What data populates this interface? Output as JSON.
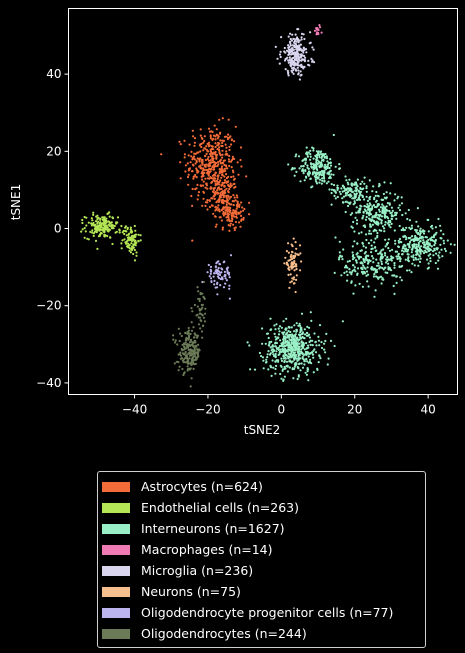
{
  "chart_data": {
    "type": "scatter",
    "xlabel": "tSNE2",
    "ylabel": "tSNE1",
    "xlim": [
      -58,
      48
    ],
    "ylim": [
      -43,
      57
    ],
    "xticks": [
      -40,
      -20,
      0,
      20,
      40
    ],
    "yticks": [
      -40,
      -20,
      0,
      20,
      40
    ],
    "grid": false,
    "legend_position": "below",
    "series": [
      {
        "name": "Astrocytes (n=624)",
        "color": "#f26b38",
        "clusters": [
          {
            "cx": -19,
            "cy": 17,
            "sx": 3.4,
            "sy": 4.8,
            "n": 380
          },
          {
            "cx": -16,
            "cy": 8,
            "sx": 2.0,
            "sy": 3.0,
            "n": 160
          },
          {
            "cx": -13,
            "cy": 4,
            "sx": 1.4,
            "sy": 2.0,
            "n": 84
          }
        ]
      },
      {
        "name": "Endothelial cells (n=263)",
        "color": "#b5e655",
        "clusters": [
          {
            "cx": -49,
            "cy": 0.5,
            "sx": 2.2,
            "sy": 1.5,
            "n": 170
          },
          {
            "cx": -41,
            "cy": -3,
            "sx": 1.2,
            "sy": 2.0,
            "n": 93
          }
        ]
      },
      {
        "name": "Interneurons (n=1627)",
        "color": "#99f0c6",
        "clusters": [
          {
            "cx": 10,
            "cy": 16,
            "sx": 2.6,
            "sy": 2.4,
            "n": 230
          },
          {
            "cx": 19,
            "cy": 10,
            "sx": 2.6,
            "sy": 1.6,
            "n": 120
          },
          {
            "cx": 26,
            "cy": 4,
            "sx": 3.5,
            "sy": 3.0,
            "n": 260
          },
          {
            "cx": 38,
            "cy": -4,
            "sx": 3.2,
            "sy": 2.6,
            "n": 260
          },
          {
            "cx": 25,
            "cy": -9,
            "sx": 4.5,
            "sy": 3.0,
            "n": 240
          },
          {
            "cx": 3,
            "cy": -31,
            "sx": 3.8,
            "sy": 3.2,
            "n": 517
          }
        ]
      },
      {
        "name": "Macrophages (n=14)",
        "color": "#f07bb4",
        "clusters": [
          {
            "cx": 10,
            "cy": 51,
            "sx": 0.6,
            "sy": 0.8,
            "n": 14
          }
        ]
      },
      {
        "name": "Microglia (n=236)",
        "color": "#dad5ef",
        "clusters": [
          {
            "cx": 4,
            "cy": 45,
            "sx": 2.0,
            "sy": 2.6,
            "n": 236
          }
        ]
      },
      {
        "name": "Neurons (n=75)",
        "color": "#f8bf8e",
        "clusters": [
          {
            "cx": 3,
            "cy": -9,
            "sx": 1.0,
            "sy": 2.4,
            "n": 75
          }
        ]
      },
      {
        "name": "Oligodendrocyte progenitor cells (n=77)",
        "color": "#bcb4ee",
        "clusters": [
          {
            "cx": -17,
            "cy": -12,
            "sx": 1.8,
            "sy": 1.8,
            "n": 77
          }
        ]
      },
      {
        "name": "Oligodendrocytes (n=244)",
        "color": "#6b7a57",
        "clusters": [
          {
            "cx": -25,
            "cy": -32,
            "sx": 1.5,
            "sy": 2.6,
            "n": 200
          },
          {
            "cx": -22,
            "cy": -21,
            "sx": 1.0,
            "sy": 2.8,
            "n": 44
          }
        ]
      }
    ]
  }
}
